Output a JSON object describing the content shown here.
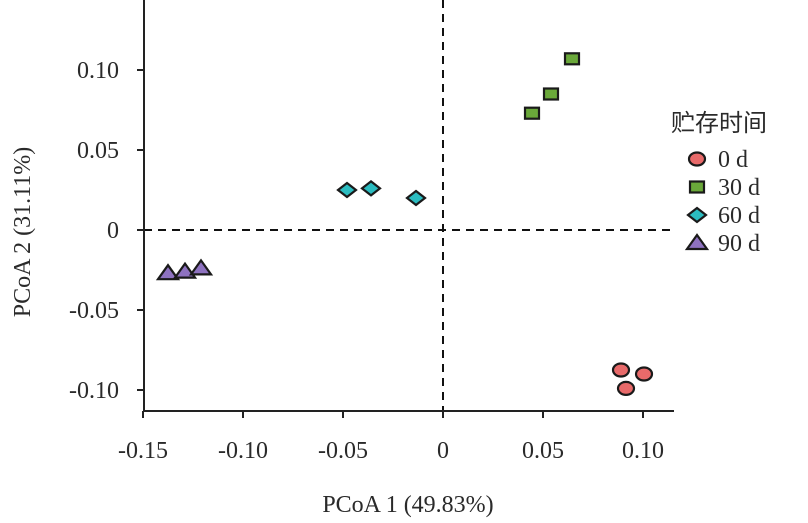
{
  "chart_data": {
    "type": "scatter",
    "title": "",
    "xlabel": "PCoA 1 (49.83%)",
    "ylabel": "PCoA 2 (31.11%)",
    "xlim": [
      -0.15,
      0.115
    ],
    "ylim": [
      -0.112,
      0.144
    ],
    "x_ticks": [
      -0.15,
      -0.1,
      -0.05,
      0,
      0.05,
      0.1
    ],
    "x_tick_labels": [
      "-0.15",
      "-0.10",
      "-0.05",
      "0",
      "0.05",
      "0.10"
    ],
    "y_ticks": [
      0.1,
      0.05,
      0,
      -0.05,
      -0.1
    ],
    "y_tick_labels": [
      "0.10",
      "0.05",
      "0",
      "-0.05",
      "-0.10"
    ],
    "reference_lines": {
      "x": 0,
      "y": 0,
      "style": "dashed"
    },
    "grid": false,
    "legend": {
      "title": "贮存时间",
      "position": "right"
    },
    "series": [
      {
        "name": "0 d",
        "marker": "circle",
        "color": "#e86a6a",
        "points": [
          [
            0.089,
            -0.0875
          ],
          [
            0.1005,
            -0.09
          ],
          [
            0.0915,
            -0.099
          ]
        ]
      },
      {
        "name": "30 d",
        "marker": "square",
        "color": "#6aa83a",
        "points": [
          [
            0.0645,
            0.107
          ],
          [
            0.054,
            0.085
          ],
          [
            0.0445,
            0.073
          ]
        ]
      },
      {
        "name": "60 d",
        "marker": "diamond",
        "color": "#2bbcc0",
        "points": [
          [
            -0.048,
            0.025
          ],
          [
            -0.036,
            0.026
          ],
          [
            -0.0135,
            0.02
          ]
        ]
      },
      {
        "name": "90 d",
        "marker": "triangle",
        "color": "#8e72c0",
        "points": [
          [
            -0.1375,
            -0.027
          ],
          [
            -0.129,
            -0.026
          ],
          [
            -0.121,
            -0.024
          ]
        ]
      }
    ]
  }
}
